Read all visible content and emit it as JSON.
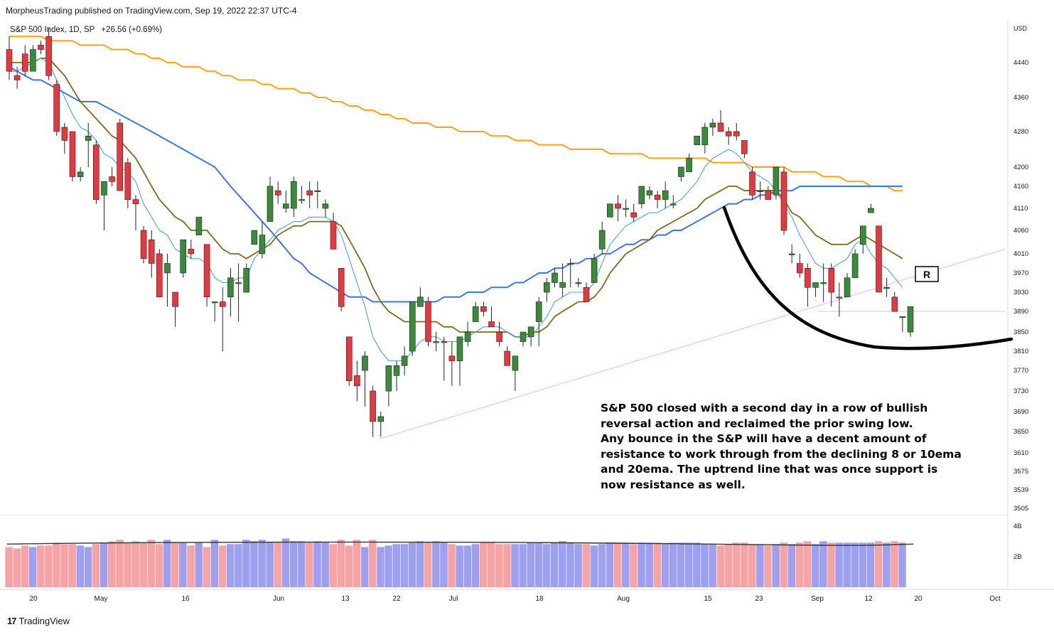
{
  "header": {
    "publisher": "MorpheusTrading published on TradingView.com, Sep 19, 2022 22:37 UTC-4"
  },
  "symbol": {
    "name": "S&P 500 Index, 1D, SP",
    "change": "+26.56 (+0.69%)"
  },
  "currency": "USD",
  "annotation_label": "R",
  "note_lines": [
    "S&P 500 closed with a second day in a row of bullish",
    "reversal action and reclaimed the prior swing low.",
    "Any bounce in the S&P will have a decent amount of",
    "resistance to work through from the declining 8 or 10ema",
    "and 20ema.  The uptrend line that was once support is",
    "now resistance as well."
  ],
  "footer": {
    "brand": "TradingView"
  },
  "colors": {
    "up": "#3a8a3a",
    "down": "#e8383f",
    "ema_fast": "#4aa3df",
    "ema_mid": "#7f6a1a",
    "sma50": "#3b78d8",
    "sma200": "#f5a21b",
    "trend": "#efc3ef",
    "vol_up": "#9f9ff0",
    "vol_down": "#f5a3a3"
  },
  "chart_data": {
    "type": "candlestick",
    "ylim": [
      3490,
      4530
    ],
    "y_ticks": [
      4440,
      4360,
      4280,
      4200,
      4160,
      4110,
      4060,
      4010,
      3970,
      3930,
      3890,
      3850,
      3810,
      3770,
      3730,
      3690,
      3650,
      3610,
      3575,
      3539,
      3505
    ],
    "x_ticks": [
      "20",
      "May",
      "16",
      "Jun",
      "13",
      "22",
      "Jul",
      "18",
      "Aug",
      "15",
      "23",
      "Sep",
      "12",
      "20",
      "Oct"
    ],
    "candles": [
      [
        4470,
        4500,
        4400,
        4420
      ],
      [
        4410,
        4430,
        4380,
        4400
      ],
      [
        4460,
        4480,
        4410,
        4420
      ],
      [
        4420,
        4480,
        4420,
        4470
      ],
      [
        4480,
        4490,
        4460,
        4470
      ],
      [
        4500,
        4520,
        4400,
        4410
      ],
      [
        4390,
        4400,
        4270,
        4280
      ],
      [
        4290,
        4300,
        4230,
        4260
      ],
      [
        4280,
        4280,
        4170,
        4180
      ],
      [
        4180,
        4200,
        4170,
        4190
      ],
      [
        4260,
        4300,
        4200,
        4270
      ],
      [
        4250,
        4260,
        4120,
        4130
      ],
      [
        4140,
        4170,
        4060,
        4170
      ],
      [
        4180,
        4200,
        4160,
        4170
      ],
      [
        4300,
        4310,
        4150,
        4150
      ],
      [
        4210,
        4220,
        4110,
        4130
      ],
      [
        4130,
        4140,
        4060,
        4120
      ],
      [
        4060,
        4070,
        3990,
        4000
      ],
      [
        4040,
        4060,
        3960,
        3990
      ],
      [
        4010,
        4020,
        3920,
        3920
      ],
      [
        3970,
        4010,
        3900,
        3990
      ],
      [
        3930,
        3930,
        3860,
        3900
      ],
      [
        3970,
        4040,
        3960,
        4040
      ],
      [
        4020,
        4040,
        4000,
        4010
      ],
      [
        4050,
        4090,
        4050,
        4090
      ],
      [
        4030,
        4030,
        3900,
        3920
      ],
      [
        3910,
        3910,
        3870,
        3910
      ],
      [
        3910,
        3940,
        3810,
        3900
      ],
      [
        3920,
        3980,
        3880,
        3960
      ],
      [
        3950,
        3990,
        3870,
        3950
      ],
      [
        3930,
        3990,
        3930,
        3980
      ],
      [
        4030,
        4060,
        4030,
        4060
      ],
      [
        4010,
        4080,
        4000,
        4050
      ],
      [
        4080,
        4180,
        4080,
        4160
      ],
      [
        4150,
        4170,
        4120,
        4140
      ],
      [
        4110,
        4150,
        4100,
        4120
      ],
      [
        4110,
        4180,
        4090,
        4170
      ],
      [
        4130,
        4160,
        4120,
        4130
      ],
      [
        4150,
        4170,
        4110,
        4140
      ],
      [
        4150,
        4170,
        4110,
        4150
      ],
      [
        4110,
        4130,
        4090,
        4120
      ],
      [
        4080,
        4100,
        4020,
        4020
      ],
      [
        3980,
        3980,
        3890,
        3900
      ],
      [
        3840,
        3840,
        3740,
        3750
      ],
      [
        3760,
        3790,
        3710,
        3740
      ],
      [
        3770,
        3810,
        3700,
        3800
      ],
      [
        3730,
        3740,
        3640,
        3670
      ],
      [
        3670,
        3690,
        3640,
        3680
      ],
      [
        3730,
        3780,
        3700,
        3780
      ],
      [
        3760,
        3790,
        3730,
        3780
      ],
      [
        3780,
        3820,
        3760,
        3800
      ],
      [
        3810,
        3910,
        3800,
        3910
      ],
      [
        3900,
        3940,
        3900,
        3920
      ],
      [
        3910,
        3920,
        3820,
        3830
      ],
      [
        3830,
        3850,
        3810,
        3830
      ],
      [
        3830,
        3840,
        3750,
        3830
      ],
      [
        3800,
        3830,
        3740,
        3790
      ],
      [
        3790,
        3840,
        3740,
        3840
      ],
      [
        3830,
        3870,
        3820,
        3850
      ],
      [
        3870,
        3910,
        3870,
        3900
      ],
      [
        3900,
        3910,
        3880,
        3890
      ],
      [
        3870,
        3900,
        3860,
        3860
      ],
      [
        3850,
        3870,
        3820,
        3830
      ],
      [
        3810,
        3820,
        3780,
        3780
      ],
      [
        3770,
        3800,
        3730,
        3800
      ],
      [
        3830,
        3850,
        3820,
        3850
      ],
      [
        3840,
        3860,
        3820,
        3860
      ],
      [
        3870,
        3920,
        3820,
        3910
      ],
      [
        3930,
        3960,
        3910,
        3950
      ],
      [
        3950,
        3980,
        3940,
        3970
      ],
      [
        3940,
        3990,
        3920,
        3950
      ],
      [
        3990,
        4000,
        3940,
        3990
      ],
      [
        3950,
        3960,
        3940,
        3950
      ],
      [
        3940,
        3950,
        3910,
        3910
      ],
      [
        3950,
        4010,
        3950,
        4000
      ],
      [
        4020,
        4080,
        4010,
        4060
      ],
      [
        4090,
        4110,
        4090,
        4120
      ],
      [
        4120,
        4140,
        4080,
        4110
      ],
      [
        4110,
        4130,
        4090,
        4110
      ],
      [
        4100,
        4120,
        4080,
        4090
      ],
      [
        4120,
        4160,
        4110,
        4160
      ],
      [
        4140,
        4160,
        4130,
        4150
      ],
      [
        4140,
        4150,
        4110,
        4130
      ],
      [
        4130,
        4170,
        4110,
        4150
      ],
      [
        4120,
        4140,
        4110,
        4120
      ],
      [
        4180,
        4200,
        4170,
        4200
      ],
      [
        4190,
        4230,
        4190,
        4220
      ],
      [
        4250,
        4260,
        4250,
        4270
      ],
      [
        4250,
        4300,
        4230,
        4290
      ],
      [
        4290,
        4310,
        4270,
        4300
      ],
      [
        4300,
        4330,
        4290,
        4280
      ],
      [
        4280,
        4290,
        4250,
        4270
      ],
      [
        4280,
        4300,
        4260,
        4270
      ],
      [
        4260,
        4260,
        4220,
        4230
      ],
      [
        4190,
        4200,
        4130,
        4140
      ],
      [
        4150,
        4170,
        4130,
        4150
      ],
      [
        4150,
        4160,
        4130,
        4130
      ],
      [
        4140,
        4200,
        4130,
        4200
      ],
      [
        4190,
        4200,
        4050,
        4060
      ],
      [
        4010,
        4030,
        3990,
        4010
      ],
      [
        3990,
        4010,
        3960,
        3970
      ],
      [
        3980,
        3990,
        3900,
        3940
      ],
      [
        3940,
        3950,
        3920,
        3950
      ],
      [
        3950,
        3990,
        3910,
        3950
      ],
      [
        3980,
        3990,
        3900,
        3930
      ],
      [
        3920,
        3950,
        3880,
        3920
      ],
      [
        3920,
        3970,
        3920,
        3960
      ],
      [
        3960,
        4020,
        3960,
        4010
      ],
      [
        4030,
        4070,
        4010,
        4070
      ],
      [
        4100,
        4120,
        4100,
        4110
      ],
      [
        4070,
        4070,
        3930,
        3930
      ],
      [
        3940,
        3960,
        3920,
        3940
      ],
      [
        3920,
        3930,
        3890,
        3890
      ],
      [
        3880,
        3880,
        3850,
        3880
      ],
      [
        3850,
        3900,
        3840,
        3900
      ]
    ],
    "ema_fast": [
      4420,
      4420,
      4430,
      4440,
      4450,
      4440,
      4400,
      4360,
      4320,
      4290,
      4280,
      4260,
      4230,
      4220,
      4200,
      4190,
      4170,
      4120,
      4090,
      4060,
      4050,
      4020,
      4010,
      4000,
      4000,
      3990,
      3960,
      3950,
      3950,
      3960,
      3960,
      4000,
      4020,
      4040,
      4060,
      4070,
      4080,
      4080,
      4090,
      4090,
      4090,
      4080,
      4050,
      4000,
      3950,
      3900,
      3840,
      3810,
      3790,
      3790,
      3790,
      3810,
      3830,
      3840,
      3840,
      3830,
      3830,
      3830,
      3840,
      3850,
      3860,
      3860,
      3860,
      3850,
      3840,
      3840,
      3840,
      3860,
      3880,
      3910,
      3920,
      3930,
      3930,
      3930,
      3950,
      3990,
      4030,
      4050,
      4070,
      4080,
      4090,
      4100,
      4100,
      4110,
      4120,
      4130,
      4150,
      4170,
      4200,
      4220,
      4230,
      4240,
      4230,
      4210,
      4190,
      4180,
      4170,
      4150,
      4120,
      4090,
      4050,
      4020,
      3990,
      3980,
      3980,
      3990,
      4000,
      4030,
      4040,
      4010,
      3990,
      3980,
      3960,
      3940
    ],
    "ema_mid": [
      4440,
      4440,
      4440,
      4440,
      4450,
      4450,
      4430,
      4410,
      4380,
      4350,
      4330,
      4310,
      4290,
      4270,
      4260,
      4240,
      4220,
      4190,
      4160,
      4130,
      4110,
      4090,
      4080,
      4060,
      4060,
      4060,
      4040,
      4020,
      4010,
      4010,
      4000,
      4010,
      4020,
      4030,
      4050,
      4060,
      4070,
      4070,
      4080,
      4080,
      4080,
      4080,
      4070,
      4040,
      4010,
      3980,
      3940,
      3910,
      3890,
      3880,
      3870,
      3870,
      3870,
      3870,
      3870,
      3860,
      3860,
      3850,
      3850,
      3850,
      3850,
      3850,
      3850,
      3850,
      3840,
      3840,
      3850,
      3850,
      3860,
      3880,
      3890,
      3900,
      3910,
      3910,
      3920,
      3940,
      3970,
      3990,
      4010,
      4020,
      4030,
      4040,
      4060,
      4070,
      4080,
      4090,
      4100,
      4110,
      4130,
      4140,
      4150,
      4160,
      4160,
      4150,
      4150,
      4150,
      4150,
      4150,
      4130,
      4100,
      4090,
      4070,
      4050,
      4040,
      4030,
      4030,
      4030,
      4040,
      4050,
      4040,
      4030,
      4020,
      4010,
      4000
    ],
    "sma50": [
      4430,
      4420,
      4410,
      4400,
      4400,
      4390,
      4380,
      4370,
      4360,
      4350,
      4350,
      4350,
      4340,
      4330,
      4320,
      4310,
      4300,
      4290,
      4280,
      4270,
      4260,
      4250,
      4240,
      4230,
      4220,
      4210,
      4200,
      4180,
      4160,
      4140,
      4120,
      4100,
      4080,
      4060,
      4040,
      4020,
      4000,
      3990,
      3970,
      3960,
      3950,
      3940,
      3930,
      3920,
      3920,
      3920,
      3910,
      3910,
      3910,
      3910,
      3910,
      3910,
      3910,
      3910,
      3910,
      3920,
      3920,
      3920,
      3930,
      3930,
      3930,
      3940,
      3940,
      3940,
      3950,
      3950,
      3960,
      3970,
      3970,
      3980,
      3980,
      3990,
      3990,
      4000,
      4000,
      4010,
      4010,
      4020,
      4030,
      4030,
      4040,
      4040,
      4050,
      4050,
      4060,
      4060,
      4070,
      4080,
      4090,
      4100,
      4110,
      4120,
      4120,
      4130,
      4130,
      4140,
      4140,
      4150,
      4150,
      4150,
      4160,
      4160,
      4160,
      4160,
      4160,
      4160,
      4160,
      4160,
      4160,
      4160,
      4160,
      4160,
      4160,
      4160
    ],
    "sma200": [
      4500,
      4500,
      4500,
      4500,
      4500,
      4490,
      4490,
      4490,
      4490,
      4480,
      4480,
      4480,
      4480,
      4470,
      4470,
      4470,
      4460,
      4460,
      4450,
      4450,
      4440,
      4440,
      4430,
      4430,
      4430,
      4420,
      4420,
      4410,
      4410,
      4400,
      4400,
      4400,
      4390,
      4390,
      4380,
      4380,
      4380,
      4370,
      4370,
      4360,
      4360,
      4350,
      4350,
      4340,
      4340,
      4330,
      4330,
      4320,
      4320,
      4310,
      4310,
      4300,
      4300,
      4300,
      4290,
      4290,
      4290,
      4280,
      4280,
      4280,
      4280,
      4270,
      4270,
      4270,
      4260,
      4260,
      4260,
      4250,
      4250,
      4250,
      4250,
      4240,
      4240,
      4240,
      4240,
      4240,
      4230,
      4230,
      4230,
      4230,
      4230,
      4220,
      4220,
      4220,
      4220,
      4220,
      4220,
      4220,
      4220,
      4210,
      4210,
      4210,
      4210,
      4210,
      4200,
      4200,
      4200,
      4200,
      4200,
      4190,
      4190,
      4190,
      4190,
      4180,
      4180,
      4180,
      4170,
      4170,
      4170,
      4160,
      4160,
      4160,
      4150,
      4150
    ],
    "volume": [
      2.8,
      2.7,
      2.9,
      2.8,
      2.9,
      2.9,
      3.1,
      3.0,
      3.0,
      2.9,
      2.8,
      3.0,
      3.1,
      3.2,
      3.3,
      3.1,
      3.2,
      3.1,
      3.3,
      3.0,
      3.3,
      3.1,
      3.1,
      2.9,
      3.1,
      2.8,
      3.3,
      2.9,
      3.0,
      3.0,
      3.3,
      3.2,
      3.3,
      3.1,
      3.1,
      3.4,
      3.2,
      3.2,
      3.1,
      3.2,
      3.1,
      3.0,
      3.3,
      2.9,
      3.3,
      2.8,
      3.3,
      2.8,
      2.9,
      3.0,
      3.0,
      3.1,
      3.2,
      3.1,
      3.2,
      3.1,
      3.0,
      2.9,
      2.9,
      3.0,
      3.1,
      3.1,
      3.0,
      3.0,
      3.0,
      3.0,
      3.1,
      3.1,
      3.0,
      3.1,
      3.2,
      3.1,
      3.0,
      3.0,
      2.9,
      3.0,
      3.1,
      3.1,
      3.1,
      3.0,
      3.1,
      3.1,
      3.1,
      3.0,
      3.1,
      3.1,
      3.1,
      3.1,
      3.0,
      3.0,
      2.9,
      3.0,
      3.1,
      3.1,
      3.0,
      3.0,
      2.9,
      3.0,
      3.1,
      3.0,
      3.1,
      3.2,
      3.0,
      3.2,
      3.1,
      3.1,
      3.1,
      3.1,
      3.1,
      3.1,
      3.2,
      3.1,
      3.2,
      3.1
    ],
    "vol_ma": 3.0,
    "trendline_from": [
      47,
      3640
    ],
    "trendline_to": [
      130,
      4020
    ],
    "support_level": 3890
  }
}
